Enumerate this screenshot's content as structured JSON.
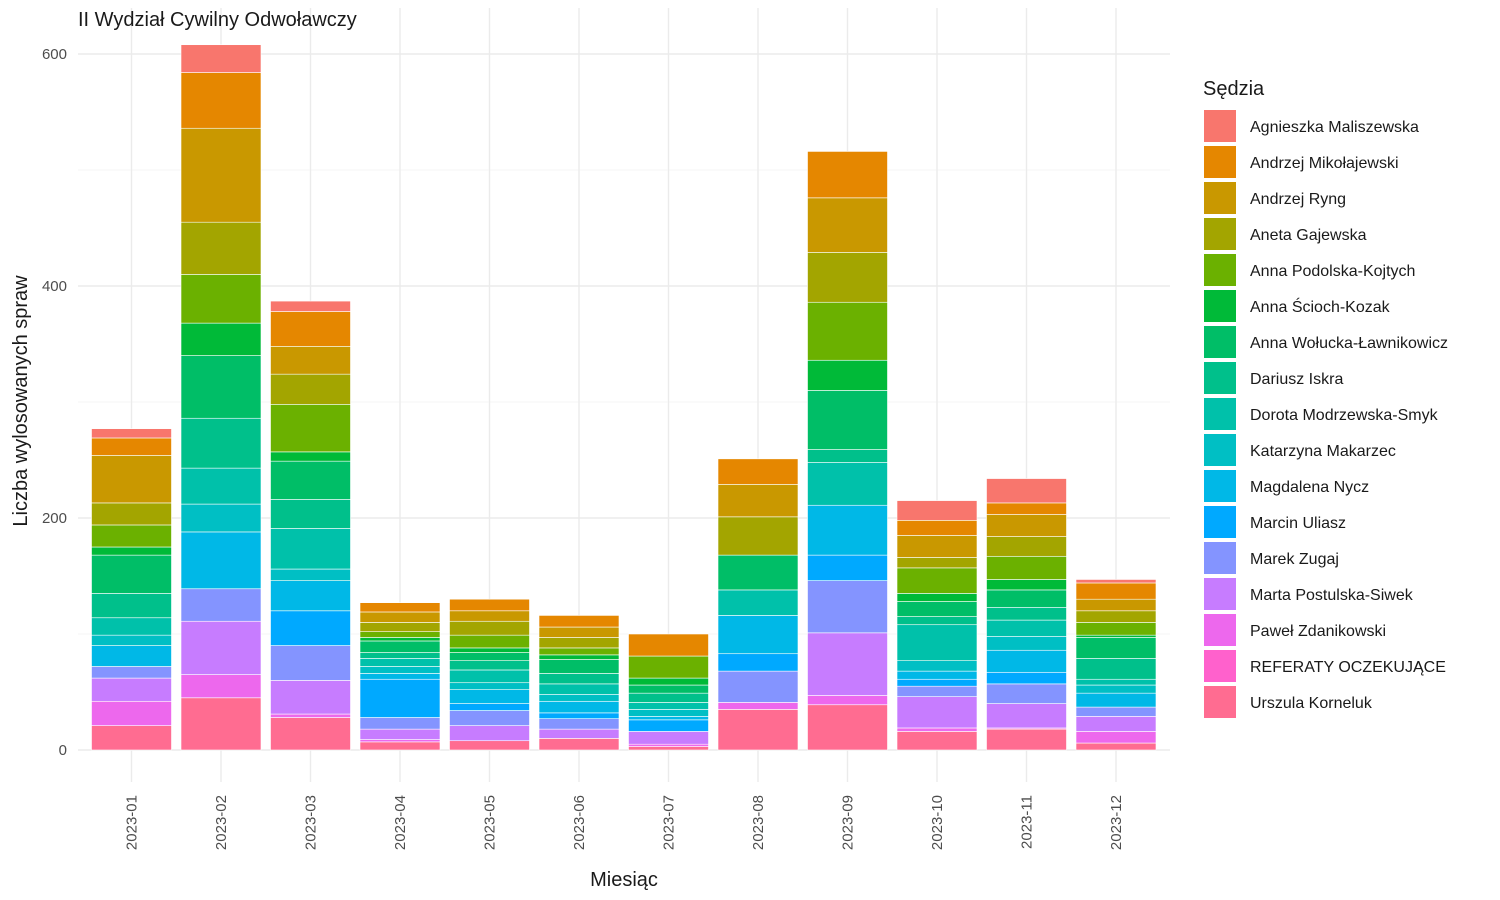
{
  "chart_data": {
    "type": "bar",
    "stacked": true,
    "title": "II Wydział Cywilny Odwoławczy",
    "xlabel": "Miesiąc",
    "ylabel": "Liczba wylosowanych spraw",
    "ylim": [
      0,
      620
    ],
    "y_ticks": [
      0,
      200,
      400,
      600
    ],
    "grid": true,
    "legend_title": "Sędzia",
    "legend_position": "right",
    "categories": [
      "2023-01",
      "2023-02",
      "2023-03",
      "2023-04",
      "2023-05",
      "2023-06",
      "2023-07",
      "2023-08",
      "2023-09",
      "2023-10",
      "2023-11",
      "2023-12"
    ],
    "series": [
      {
        "name": "Agnieszka Maliszewska",
        "color": "#F8766D",
        "values": [
          8,
          24,
          9,
          0,
          0,
          0,
          0,
          0,
          0,
          17,
          21,
          3
        ]
      },
      {
        "name": "Andrzej Mikołajewski",
        "color": "#E58700",
        "values": [
          15,
          48,
          30,
          8,
          10,
          10,
          19,
          22,
          40,
          13,
          10,
          14
        ]
      },
      {
        "name": "Andrzej Ryng",
        "color": "#C99800",
        "values": [
          41,
          81,
          24,
          9,
          9,
          9,
          0,
          28,
          47,
          19,
          19,
          10
        ]
      },
      {
        "name": "Aneta Gajewska",
        "color": "#A3A500",
        "values": [
          19,
          45,
          26,
          8,
          12,
          9,
          0,
          33,
          43,
          9,
          17,
          10
        ]
      },
      {
        "name": "Anna Podolska-Kojtych",
        "color": "#6BB100",
        "values": [
          19,
          42,
          41,
          5,
          11,
          6,
          19,
          0,
          50,
          22,
          20,
          11
        ]
      },
      {
        "name": "Anna Ścioch-Kozak",
        "color": "#00BA38",
        "values": [
          7,
          28,
          8,
          3,
          4,
          4,
          6,
          0,
          26,
          7,
          9,
          2
        ]
      },
      {
        "name": "Anna Wołucka-Ławnikowicz",
        "color": "#00BE67",
        "values": [
          33,
          54,
          33,
          10,
          7,
          12,
          7,
          30,
          51,
          13,
          15,
          18
        ]
      },
      {
        "name": "Dariusz Iskra",
        "color": "#00C08B",
        "values": [
          21,
          43,
          25,
          5,
          8,
          9,
          8,
          0,
          11,
          7,
          11,
          18
        ]
      },
      {
        "name": "Dorota Modrzewska-Smyk",
        "color": "#00C1AA",
        "values": [
          15,
          31,
          35,
          7,
          11,
          9,
          6,
          22,
          37,
          31,
          14,
          5
        ]
      },
      {
        "name": "Katarzyna Makarzec",
        "color": "#00BFC4",
        "values": [
          9,
          24,
          10,
          6,
          6,
          6,
          6,
          0,
          0,
          9,
          12,
          7
        ]
      },
      {
        "name": "Magdalena Nycz",
        "color": "#00B8E7",
        "values": [
          18,
          49,
          26,
          5,
          12,
          10,
          3,
          33,
          43,
          7,
          19,
          12
        ]
      },
      {
        "name": "Marcin Uliasz",
        "color": "#00A9FF",
        "values": [
          0,
          0,
          30,
          33,
          6,
          5,
          10,
          15,
          22,
          6,
          10,
          0
        ]
      },
      {
        "name": "Marek Zugaj",
        "color": "#8494FF",
        "values": [
          10,
          28,
          30,
          10,
          13,
          9,
          0,
          27,
          45,
          9,
          17,
          8
        ]
      },
      {
        "name": "Marta Postulska-Siwek",
        "color": "#C77CFF",
        "values": [
          20,
          46,
          29,
          9,
          13,
          8,
          11,
          0,
          54,
          27,
          21,
          13
        ]
      },
      {
        "name": "Paweł Zdanikowski",
        "color": "#ED68ED",
        "values": [
          21,
          20,
          3,
          2,
          0,
          0,
          2,
          6,
          8,
          3,
          1,
          10
        ]
      },
      {
        "name": "REFERATY OCZEKUJĄCE",
        "color": "#FF61CC",
        "values": [
          0,
          0,
          0,
          0,
          0,
          0,
          0,
          0,
          0,
          0,
          0,
          0
        ]
      },
      {
        "name": "Urszula Korneluk",
        "color": "#FF6C91",
        "values": [
          21,
          45,
          28,
          7,
          8,
          10,
          3,
          35,
          39,
          16,
          18,
          6
        ]
      }
    ]
  }
}
